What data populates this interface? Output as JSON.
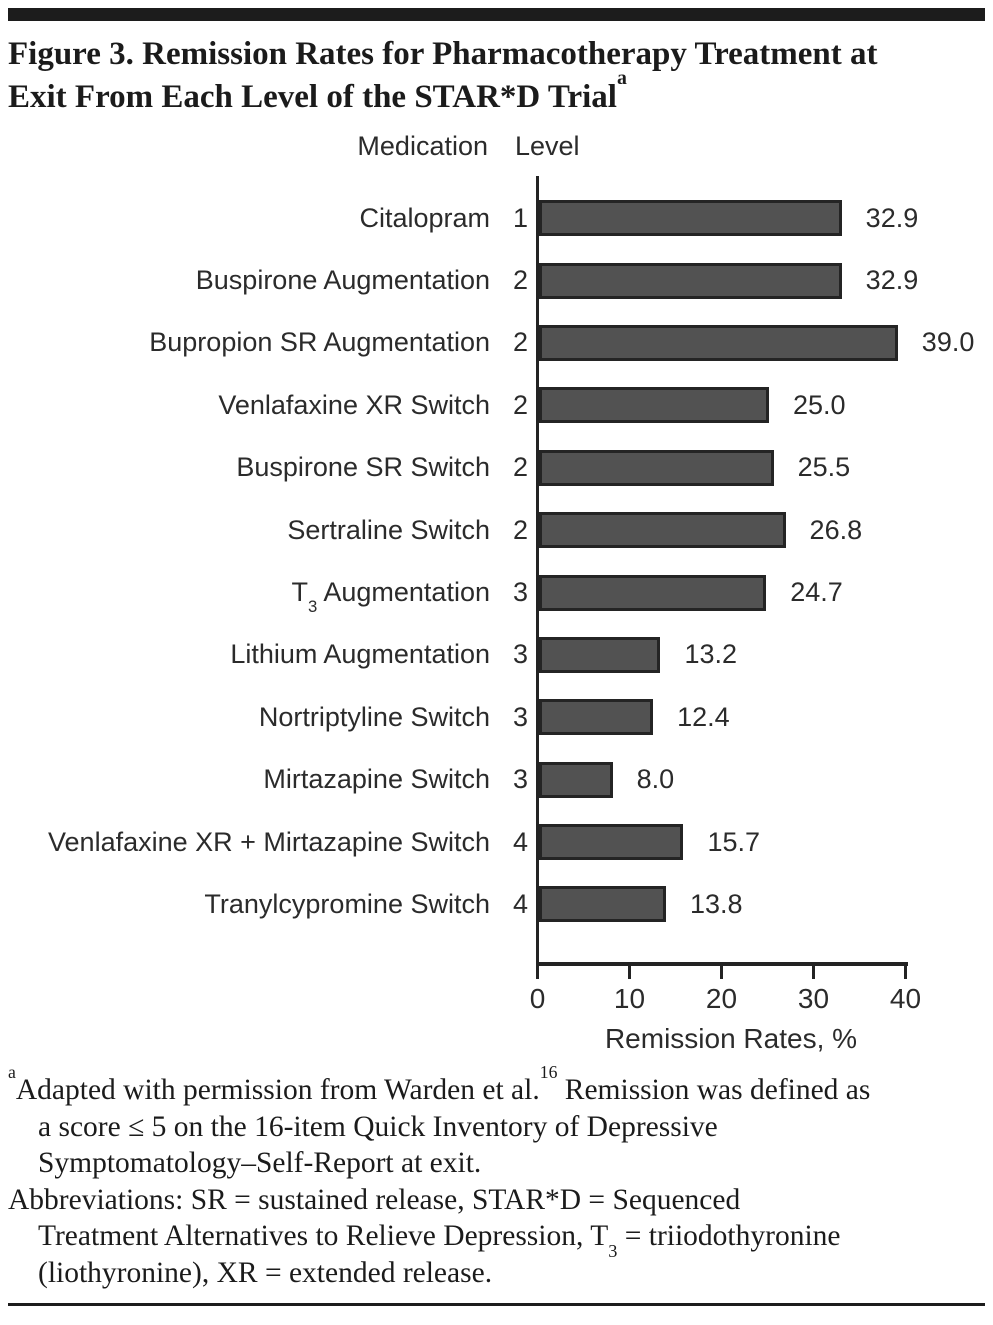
{
  "title": {
    "line1": "Figure 3. Remission Rates for Pharmacotherapy Treatment at",
    "line2": "Exit From Each Level of the STAR*D Trial",
    "line2_sup": "a"
  },
  "chart_data": {
    "type": "bar",
    "orientation": "horizontal",
    "header_medication": "Medication",
    "header_level": "Level",
    "xlabel": "Remission Rates, %",
    "xticks": [
      "0",
      "10",
      "20",
      "30",
      "40"
    ],
    "xlim": [
      0,
      40
    ],
    "bar_fill": "#525252",
    "bar_stroke": "#242424",
    "rows": [
      {
        "medication": "Citalopram",
        "medication_parts": [
          {
            "text": "Citalopram"
          }
        ],
        "level": "1",
        "value": 32.9,
        "value_label": "32.9"
      },
      {
        "medication": "Buspirone Augmentation",
        "medication_parts": [
          {
            "text": "Buspirone Augmentation"
          }
        ],
        "level": "2",
        "value": 32.9,
        "value_label": "32.9"
      },
      {
        "medication": "Bupropion SR Augmentation",
        "medication_parts": [
          {
            "text": "Bupropion SR Augmentation"
          }
        ],
        "level": "2",
        "value": 39.0,
        "value_label": "39.0"
      },
      {
        "medication": "Venlafaxine XR Switch",
        "medication_parts": [
          {
            "text": "Venlafaxine XR Switch"
          }
        ],
        "level": "2",
        "value": 25.0,
        "value_label": "25.0"
      },
      {
        "medication": "Buspirone SR Switch",
        "medication_parts": [
          {
            "text": "Buspirone SR Switch"
          }
        ],
        "level": "2",
        "value": 25.5,
        "value_label": "25.5"
      },
      {
        "medication": "Sertraline Switch",
        "medication_parts": [
          {
            "text": "Sertraline Switch"
          }
        ],
        "level": "2",
        "value": 26.8,
        "value_label": "26.8"
      },
      {
        "medication": "T3 Augmentation",
        "medication_parts": [
          {
            "text": "T"
          },
          {
            "sub": "3"
          },
          {
            "text": " Augmentation"
          }
        ],
        "level": "3",
        "value": 24.7,
        "value_label": "24.7"
      },
      {
        "medication": "Lithium Augmentation",
        "medication_parts": [
          {
            "text": "Lithium Augmentation"
          }
        ],
        "level": "3",
        "value": 13.2,
        "value_label": "13.2"
      },
      {
        "medication": "Nortriptyline Switch",
        "medication_parts": [
          {
            "text": "Nortriptyline Switch"
          }
        ],
        "level": "3",
        "value": 12.4,
        "value_label": "12.4"
      },
      {
        "medication": "Mirtazapine Switch",
        "medication_parts": [
          {
            "text": "Mirtazapine Switch"
          }
        ],
        "level": "3",
        "value": 8.0,
        "value_label": "8.0"
      },
      {
        "medication": "Venlafaxine XR + Mirtazapine Switch",
        "medication_parts": [
          {
            "text": "Venlafaxine XR + Mirtazapine Switch"
          }
        ],
        "level": "4",
        "value": 15.7,
        "value_label": "15.7"
      },
      {
        "medication": "Tranylcypromine Switch",
        "medication_parts": [
          {
            "text": "Tranylcypromine Switch"
          }
        ],
        "level": "4",
        "value": 13.8,
        "value_label": "13.8"
      }
    ]
  },
  "footnotes": {
    "lines": [
      {
        "indent": false,
        "parts": [
          {
            "sup": "a"
          },
          {
            "text": "Adapted with permission from Warden et al."
          },
          {
            "sup": "16"
          },
          {
            "text": " Remission was defined as"
          }
        ]
      },
      {
        "indent": true,
        "parts": [
          {
            "text": "a score ≤ 5 on the 16-item Quick Inventory of Depressive"
          }
        ]
      },
      {
        "indent": true,
        "parts": [
          {
            "text": "Symptomatology–Self-Report at exit."
          }
        ]
      },
      {
        "indent": false,
        "parts": [
          {
            "text": "Abbreviations: SR = sustained release, STAR*D = Sequenced"
          }
        ]
      },
      {
        "indent": true,
        "parts": [
          {
            "text": "Treatment Alternatives to Relieve Depression, T"
          },
          {
            "sub": "3"
          },
          {
            "text": " = triiodothyronine"
          }
        ]
      },
      {
        "indent": true,
        "parts": [
          {
            "text": "(liothyronine), XR = extended release."
          }
        ]
      }
    ]
  }
}
